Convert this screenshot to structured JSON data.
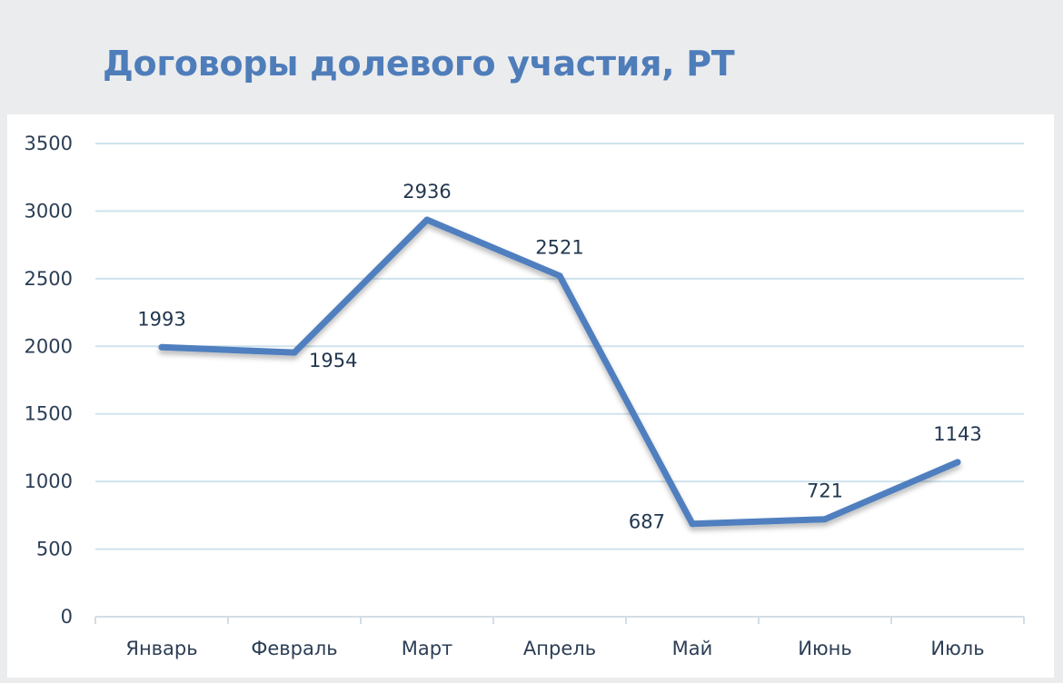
{
  "chart_data": {
    "type": "line",
    "title": "Договоры долевого участия, РТ",
    "xlabel": "",
    "ylabel": "",
    "categories": [
      "Январь",
      "Февраль",
      "Март",
      "Апрель",
      "Май",
      "Июнь",
      "Июль"
    ],
    "series": [
      {
        "values": [
          1993,
          1954,
          2936,
          2521,
          687,
          721,
          1143
        ]
      }
    ],
    "ylim": [
      0,
      3500
    ],
    "yticks": [
      0,
      500,
      1000,
      1500,
      2000,
      2500,
      3000,
      3500
    ],
    "grid": true,
    "legend": "none",
    "data_labels": true,
    "colors": {
      "line": "#4f7fbf",
      "grid": "#cfe3ee",
      "title": "#4e7dba"
    }
  }
}
